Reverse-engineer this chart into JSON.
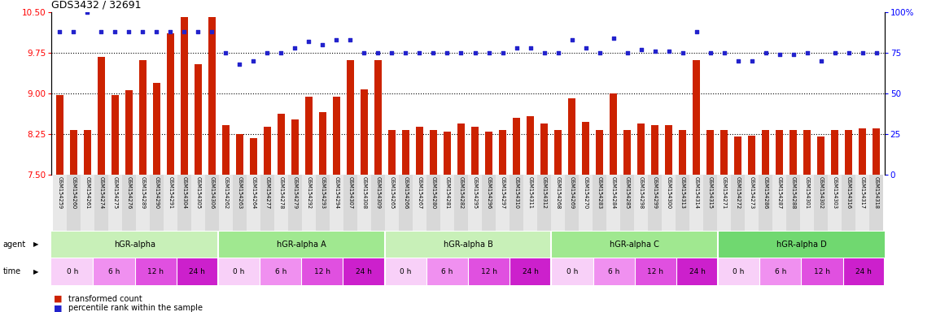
{
  "title": "GDS3432 / 32691",
  "samples": [
    "GSM154259",
    "GSM154260",
    "GSM154261",
    "GSM154274",
    "GSM154275",
    "GSM154276",
    "GSM154289",
    "GSM154290",
    "GSM154291",
    "GSM154304",
    "GSM154305",
    "GSM154306",
    "GSM154262",
    "GSM154263",
    "GSM154264",
    "GSM154277",
    "GSM154278",
    "GSM154279",
    "GSM154292",
    "GSM154293",
    "GSM154294",
    "GSM154307",
    "GSM154308",
    "GSM154309",
    "GSM154265",
    "GSM154266",
    "GSM154267",
    "GSM154280",
    "GSM154281",
    "GSM154282",
    "GSM154295",
    "GSM154296",
    "GSM154297",
    "GSM154310",
    "GSM154311",
    "GSM154312",
    "GSM154268",
    "GSM154269",
    "GSM154270",
    "GSM154283",
    "GSM154284",
    "GSM154285",
    "GSM154298",
    "GSM154299",
    "GSM154300",
    "GSM154313",
    "GSM154314",
    "GSM154315",
    "GSM154271",
    "GSM154272",
    "GSM154273",
    "GSM154286",
    "GSM154287",
    "GSM154288",
    "GSM154301",
    "GSM154302",
    "GSM154303",
    "GSM154316",
    "GSM154317",
    "GSM154318"
  ],
  "bar_values": [
    8.98,
    8.32,
    8.32,
    9.68,
    8.98,
    9.07,
    9.62,
    9.2,
    10.12,
    10.42,
    9.55,
    10.42,
    8.42,
    8.25,
    8.18,
    8.38,
    8.62,
    8.52,
    8.95,
    8.65,
    8.95,
    9.62,
    9.08,
    9.62,
    8.32,
    8.32,
    8.38,
    8.32,
    8.3,
    8.45,
    8.38,
    8.3,
    8.32,
    8.55,
    8.58,
    8.45,
    8.32,
    8.92,
    8.47,
    8.32,
    9.0,
    8.32,
    8.45,
    8.42,
    8.42,
    8.32,
    9.62,
    8.32,
    8.32,
    8.2,
    8.22,
    8.32,
    8.32,
    8.32,
    8.32,
    8.2,
    8.32,
    8.32,
    8.35,
    8.35
  ],
  "percentile_values": [
    88,
    88,
    100,
    88,
    88,
    88,
    88,
    88,
    88,
    88,
    88,
    88,
    75,
    68,
    70,
    75,
    75,
    78,
    82,
    80,
    83,
    83,
    75,
    75,
    75,
    75,
    75,
    75,
    75,
    75,
    75,
    75,
    75,
    78,
    78,
    75,
    75,
    83,
    78,
    75,
    84,
    75,
    77,
    76,
    76,
    75,
    88,
    75,
    75,
    70,
    70,
    75,
    74,
    74,
    75,
    70,
    75,
    75,
    75,
    75
  ],
  "group_labels": [
    "hGR-alpha",
    "hGR-alpha A",
    "hGR-alpha B",
    "hGR-alpha C",
    "hGR-alpha D"
  ],
  "group_colors": [
    "#c8f0b8",
    "#a0e890",
    "#c8f0b8",
    "#a0e890",
    "#70d870"
  ],
  "group_starts": [
    0,
    12,
    24,
    36,
    48
  ],
  "group_ends": [
    12,
    24,
    36,
    48,
    60
  ],
  "time_labels": [
    "0 h",
    "6 h",
    "12 h",
    "24 h"
  ],
  "time_colors": [
    "#f8d0f8",
    "#f090f0",
    "#e050e0",
    "#cc20cc"
  ],
  "bar_color": "#cc2200",
  "dot_color": "#2222cc",
  "ylim_left": [
    7.5,
    10.5
  ],
  "ylim_right": [
    0,
    100
  ],
  "yticks_left": [
    7.5,
    8.25,
    9.0,
    9.75,
    10.5
  ],
  "yticks_right": [
    0,
    25,
    50,
    75,
    100
  ],
  "hlines": [
    8.25,
    9.0,
    9.75
  ],
  "bar_width": 0.55
}
